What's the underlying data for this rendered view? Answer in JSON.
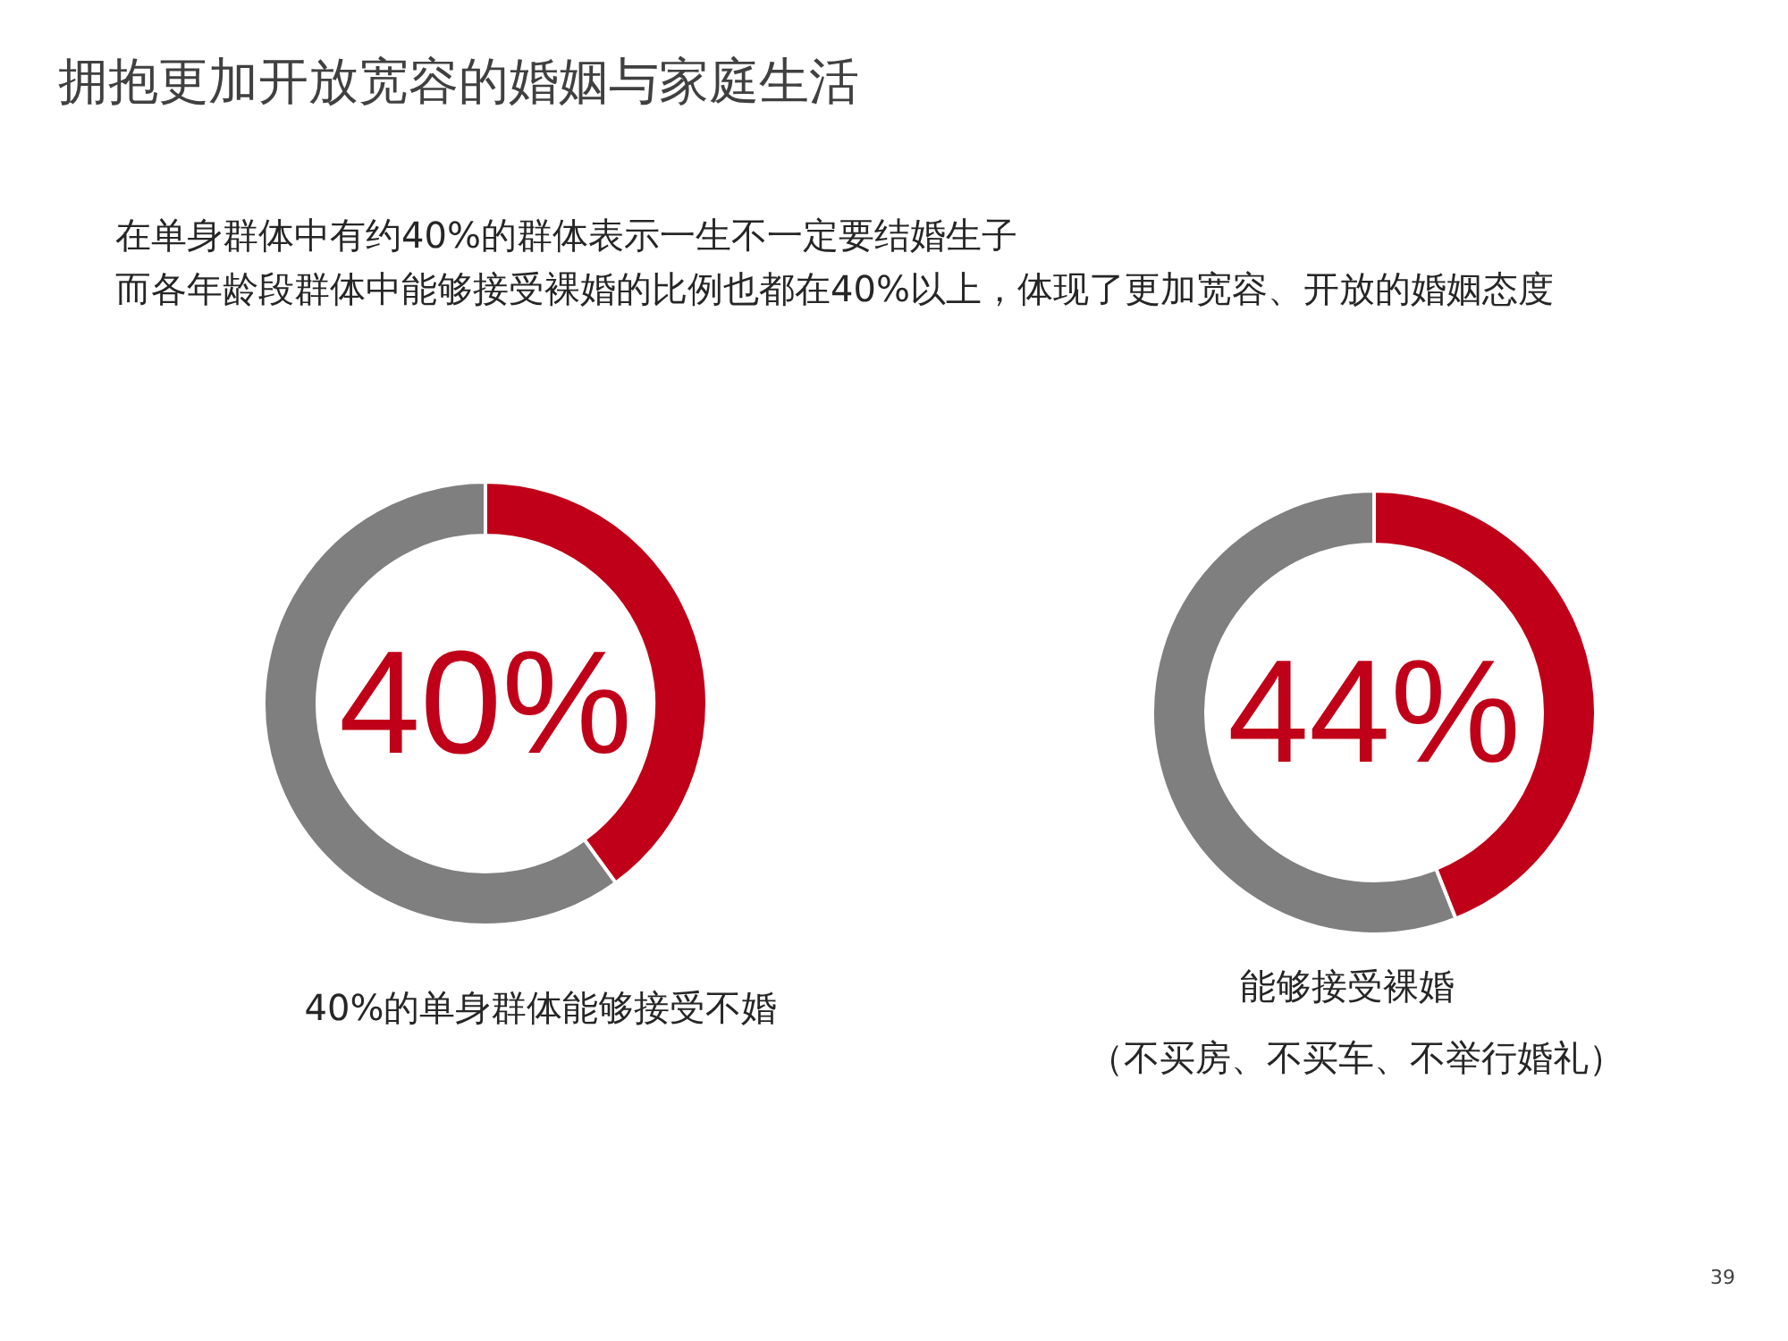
{
  "chart_data": [
    {
      "type": "donut",
      "title": "拥抱更加开放宽容的婚姻与家庭生活",
      "annotations": [
        "在单身群体中有约40%的群体表示一生不一定要结婚生子",
        "而各年龄段群体中能够接受裸婚的比例也都在40%以上，体现了更加宽容、开放的婚姻态度"
      ],
      "categories": [
        null,
        null
      ],
      "values": [
        40,
        60
      ],
      "colors": [
        "#c00018",
        "#7f7f7f"
      ],
      "value_labels": [
        "40%",
        null
      ],
      "xlabel": "40%的单身群体能够接受不婚"
    },
    {
      "type": "donut",
      "categories": [
        null,
        null
      ],
      "values": [
        44,
        56
      ],
      "colors": [
        "#c00018",
        "#7f7f7f"
      ],
      "value_labels": [
        "44%",
        null
      ],
      "xlabel": "能够接受裸婚",
      "annotations": [
        "（不买房、不买车、不举行婚礼）",
        "39"
      ]
    }
  ]
}
